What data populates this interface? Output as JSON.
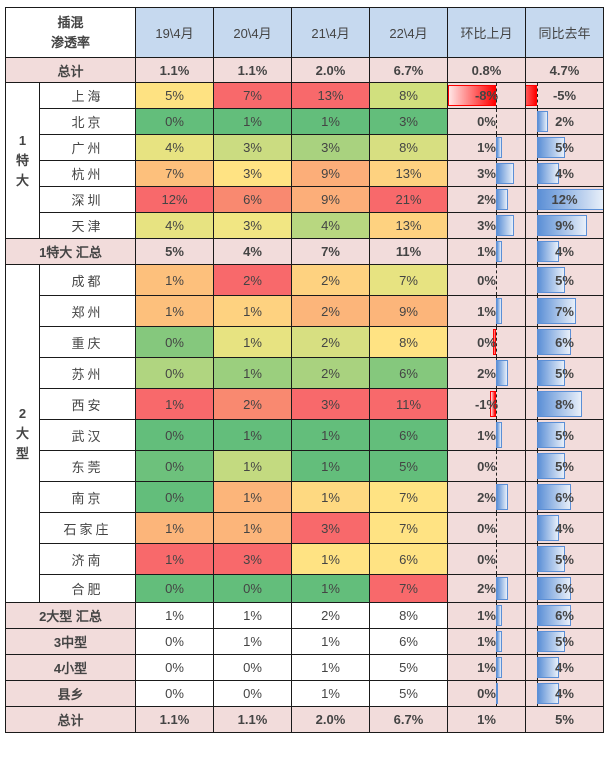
{
  "header": {
    "corner_line1": "插混",
    "corner_line2": "渗透率",
    "columns": [
      "19\\4月",
      "20\\4月",
      "21\\4月",
      "22\\4月",
      "环比上月",
      "同比去年"
    ]
  },
  "total_top": {
    "label": "总计",
    "values": [
      "1.1%",
      "1.1%",
      "2.0%",
      "6.7%",
      "0.8%",
      "4.7%"
    ]
  },
  "group1": {
    "label_num": "1",
    "label_c1": "特",
    "label_c2": "大",
    "cities": [
      {
        "name": "上海",
        "v": [
          "5%",
          "7%",
          "13%",
          "8%"
        ],
        "mom": "-8%",
        "yoy": "-5%",
        "mom_n": -8,
        "yoy_n": -5,
        "colors": [
          "#fee282",
          "#f8696b",
          "#f8696b",
          "#d1e07e"
        ]
      },
      {
        "name": "北京",
        "v": [
          "0%",
          "1%",
          "1%",
          "3%"
        ],
        "mom": "0%",
        "yoy": "2%",
        "mom_n": 0,
        "yoy_n": 2,
        "colors": [
          "#63be7b",
          "#63be7b",
          "#63be7b",
          "#63be7b"
        ]
      },
      {
        "name": "广州",
        "v": [
          "4%",
          "3%",
          "3%",
          "8%"
        ],
        "mom": "1%",
        "yoy": "5%",
        "mom_n": 1,
        "yoy_n": 5,
        "colors": [
          "#e7e381",
          "#cbdc81",
          "#a9d27f",
          "#d7df81"
        ]
      },
      {
        "name": "杭州",
        "v": [
          "7%",
          "3%",
          "9%",
          "13%"
        ],
        "mom": "3%",
        "yoy": "4%",
        "mom_n": 3,
        "yoy_n": 4,
        "colors": [
          "#fdc07c",
          "#ffe383",
          "#fcae79",
          "#fed280"
        ]
      },
      {
        "name": "深圳",
        "v": [
          "12%",
          "6%",
          "9%",
          "21%"
        ],
        "mom": "2%",
        "yoy": "12%",
        "mom_n": 2,
        "yoy_n": 12,
        "colors": [
          "#f8696b",
          "#f98970",
          "#fcae79",
          "#f8696b"
        ]
      },
      {
        "name": "天津",
        "v": [
          "4%",
          "3%",
          "4%",
          "13%"
        ],
        "mom": "3%",
        "yoy": "9%",
        "mom_n": 3,
        "yoy_n": 9,
        "colors": [
          "#e7e381",
          "#f1e683",
          "#b8d780",
          "#fed280"
        ]
      }
    ],
    "summary": {
      "label": "1特大 汇总",
      "values": [
        "5%",
        "4%",
        "7%",
        "11%"
      ],
      "mom": "1%",
      "yoy": "4%",
      "mom_n": 1,
      "yoy_n": 4
    }
  },
  "group2": {
    "label_num": "2",
    "label_c1": "大",
    "label_c2": "型",
    "cities": [
      {
        "name": "成都",
        "v": [
          "1%",
          "2%",
          "2%",
          "7%"
        ],
        "mom": "0%",
        "yoy": "5%",
        "mom_n": 0,
        "yoy_n": 5,
        "colors": [
          "#fdc07c",
          "#f8696b",
          "#fed280",
          "#e7e381"
        ]
      },
      {
        "name": "郑州",
        "v": [
          "1%",
          "1%",
          "2%",
          "9%"
        ],
        "mom": "1%",
        "yoy": "7%",
        "mom_n": 1,
        "yoy_n": 7,
        "colors": [
          "#fdc07c",
          "#fed280",
          "#fcb57a",
          "#fcb57a"
        ]
      },
      {
        "name": "重庆",
        "v": [
          "0%",
          "1%",
          "2%",
          "8%"
        ],
        "mom": "0%",
        "yoy": "6%",
        "mom_n": -0.2,
        "yoy_n": 6,
        "colors": [
          "#85c87d",
          "#e7e381",
          "#d7df81",
          "#ffe383"
        ]
      },
      {
        "name": "苏州",
        "v": [
          "0%",
          "1%",
          "2%",
          "6%"
        ],
        "mom": "2%",
        "yoy": "5%",
        "mom_n": 2,
        "yoy_n": 5,
        "colors": [
          "#b0d580",
          "#9bcf7e",
          "#a9d27f",
          "#85c87d"
        ]
      },
      {
        "name": "西安",
        "v": [
          "1%",
          "2%",
          "3%",
          "11%"
        ],
        "mom": "-1%",
        "yoy": "8%",
        "mom_n": -1,
        "yoy_n": 8,
        "colors": [
          "#f8696b",
          "#f98970",
          "#f8696b",
          "#f8696b"
        ]
      },
      {
        "name": "武汉",
        "v": [
          "0%",
          "1%",
          "1%",
          "6%"
        ],
        "mom": "1%",
        "yoy": "5%",
        "mom_n": 1,
        "yoy_n": 5,
        "colors": [
          "#63be7b",
          "#63be7b",
          "#63be7b",
          "#63be7b"
        ]
      },
      {
        "name": "东莞",
        "v": [
          "0%",
          "1%",
          "1%",
          "5%"
        ],
        "mom": "0%",
        "yoy": "5%",
        "mom_n": 0,
        "yoy_n": 5,
        "colors": [
          "#6dc17c",
          "#c3da80",
          "#63be7b",
          "#63be7b"
        ]
      },
      {
        "name": "南京",
        "v": [
          "0%",
          "1%",
          "1%",
          "7%"
        ],
        "mom": "2%",
        "yoy": "6%",
        "mom_n": 2,
        "yoy_n": 6,
        "colors": [
          "#63be7b",
          "#fcb57a",
          "#fed981",
          "#ffe383"
        ]
      },
      {
        "name": "石家庄",
        "v": [
          "1%",
          "1%",
          "3%",
          "7%"
        ],
        "mom": "0%",
        "yoy": "4%",
        "mom_n": 0,
        "yoy_n": 4,
        "colors": [
          "#fcb57a",
          "#fcb57a",
          "#f8696b",
          "#ffe383"
        ]
      },
      {
        "name": "济南",
        "v": [
          "1%",
          "3%",
          "1%",
          "6%"
        ],
        "mom": "0%",
        "yoy": "5%",
        "mom_n": 0,
        "yoy_n": 5,
        "colors": [
          "#f8696b",
          "#f8696b",
          "#ffe383",
          "#ffe383"
        ]
      },
      {
        "name": "合肥",
        "v": [
          "0%",
          "0%",
          "1%",
          "7%"
        ],
        "mom": "2%",
        "yoy": "6%",
        "mom_n": 2,
        "yoy_n": 6,
        "colors": [
          "#63be7b",
          "#63be7b",
          "#63be7b",
          "#f8696b"
        ]
      }
    ],
    "summary": {
      "label": "2大型 汇总",
      "values": [
        "1%",
        "1%",
        "2%",
        "8%"
      ],
      "mom": "1%",
      "yoy": "6%",
      "mom_n": 1,
      "yoy_n": 6
    }
  },
  "others": [
    {
      "label": "3中型",
      "values": [
        "0%",
        "1%",
        "1%",
        "6%"
      ],
      "mom": "1%",
      "yoy": "5%",
      "mom_n": 1,
      "yoy_n": 5
    },
    {
      "label": "4小型",
      "values": [
        "0%",
        "0%",
        "1%",
        "5%"
      ],
      "mom": "1%",
      "yoy": "4%",
      "mom_n": 1,
      "yoy_n": 4
    },
    {
      "label": "县乡",
      "values": [
        "0%",
        "0%",
        "1%",
        "5%"
      ],
      "mom": "0%",
      "yoy": "4%",
      "mom_n": 0.4,
      "yoy_n": 4
    }
  ],
  "total_bottom": {
    "label": "总计",
    "values": [
      "1.1%",
      "1.1%",
      "2.0%",
      "6.7%",
      "1%",
      "5%"
    ]
  }
}
